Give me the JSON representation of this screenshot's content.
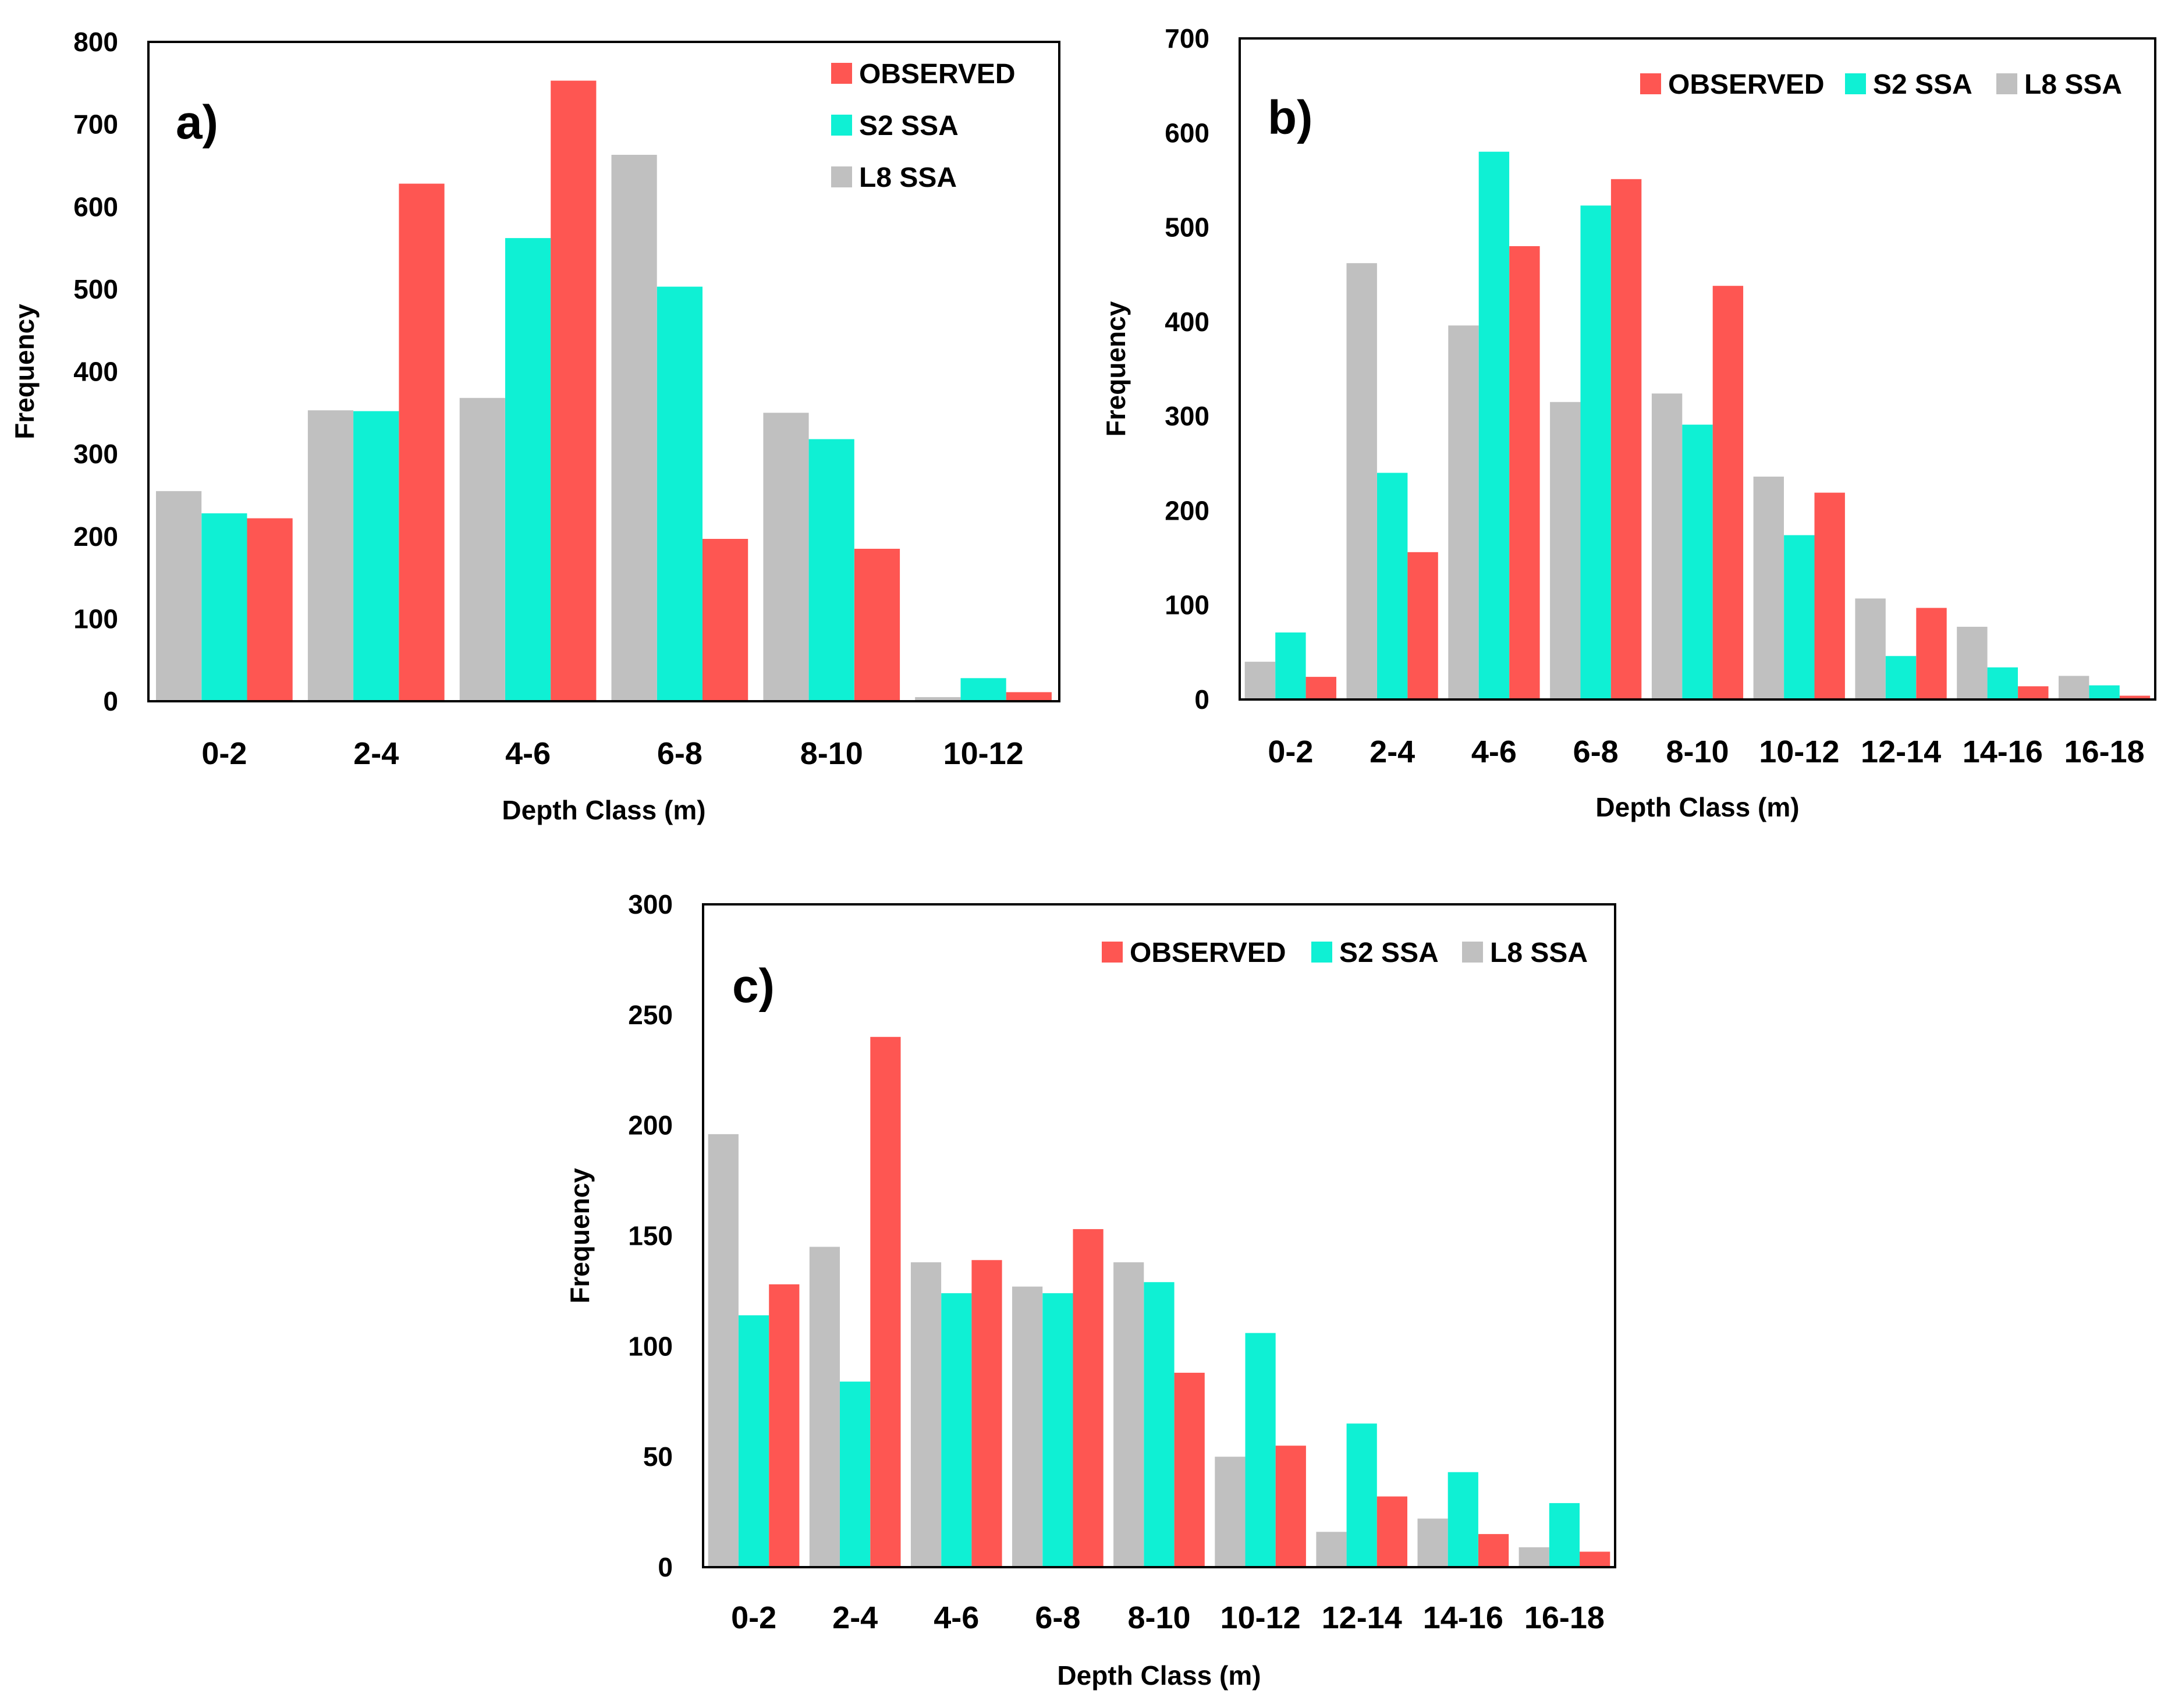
{
  "colors": {
    "observed": "#fe5652",
    "s2": "#0ff0d4",
    "l8": "#c0c0c0"
  },
  "chart_data": [
    {
      "type": "bar",
      "panel_label": "a)",
      "xlabel": "Depth Class (m)",
      "ylabel": "Frequency",
      "ylim": [
        0,
        800
      ],
      "yticks": [
        "0",
        "100",
        "200",
        "300",
        "400",
        "500",
        "600",
        "700",
        "800"
      ],
      "categories": [
        "0-2",
        "2-4",
        "4-6",
        "6-8",
        "8-10",
        "10-12"
      ],
      "legend_position": "top-right-vertical",
      "series": [
        {
          "name": "L8 SSA",
          "key": "l8",
          "values": [
            255,
            353,
            368,
            663,
            350,
            5
          ]
        },
        {
          "name": "S2 SSA",
          "key": "s2",
          "values": [
            228,
            352,
            562,
            503,
            318,
            28
          ]
        },
        {
          "name": "OBSERVED",
          "key": "observed",
          "values": [
            222,
            628,
            753,
            197,
            185,
            11
          ]
        }
      ]
    },
    {
      "type": "bar",
      "panel_label": "b)",
      "xlabel": "Depth Class (m)",
      "ylabel": "Frequency",
      "ylim": [
        0,
        700
      ],
      "yticks": [
        "0",
        "100",
        "200",
        "300",
        "400",
        "500",
        "600",
        "700"
      ],
      "categories": [
        "0-2",
        "2-4",
        "4-6",
        "6-8",
        "8-10",
        "10-12",
        "12-14",
        "14-16",
        "16-18"
      ],
      "legend_position": "top-horizontal",
      "series": [
        {
          "name": "L8 SSA",
          "key": "l8",
          "values": [
            40,
            462,
            396,
            315,
            324,
            236,
            107,
            77,
            25
          ]
        },
        {
          "name": "S2 SSA",
          "key": "s2",
          "values": [
            71,
            240,
            580,
            523,
            291,
            174,
            46,
            34,
            15
          ]
        },
        {
          "name": "OBSERVED",
          "key": "observed",
          "values": [
            24,
            156,
            480,
            551,
            438,
            219,
            97,
            14,
            4
          ]
        }
      ]
    },
    {
      "type": "bar",
      "panel_label": "c)",
      "xlabel": "Depth Class (m)",
      "ylabel": "Frequency",
      "ylim": [
        0,
        300
      ],
      "yticks": [
        "0",
        "50",
        "100",
        "150",
        "200",
        "250",
        "300"
      ],
      "categories": [
        "0-2",
        "2-4",
        "4-6",
        "6-8",
        "8-10",
        "10-12",
        "12-14",
        "14-16",
        "16-18"
      ],
      "legend_position": "top-horizontal",
      "series": [
        {
          "name": "L8 SSA",
          "key": "l8",
          "values": [
            196,
            145,
            138,
            127,
            138,
            50,
            16,
            22,
            9
          ]
        },
        {
          "name": "S2 SSA",
          "key": "s2",
          "values": [
            114,
            84,
            124,
            124,
            129,
            106,
            65,
            43,
            29
          ]
        },
        {
          "name": "OBSERVED",
          "key": "observed",
          "values": [
            128,
            240,
            139,
            153,
            88,
            55,
            32,
            15,
            7
          ]
        }
      ]
    }
  ]
}
